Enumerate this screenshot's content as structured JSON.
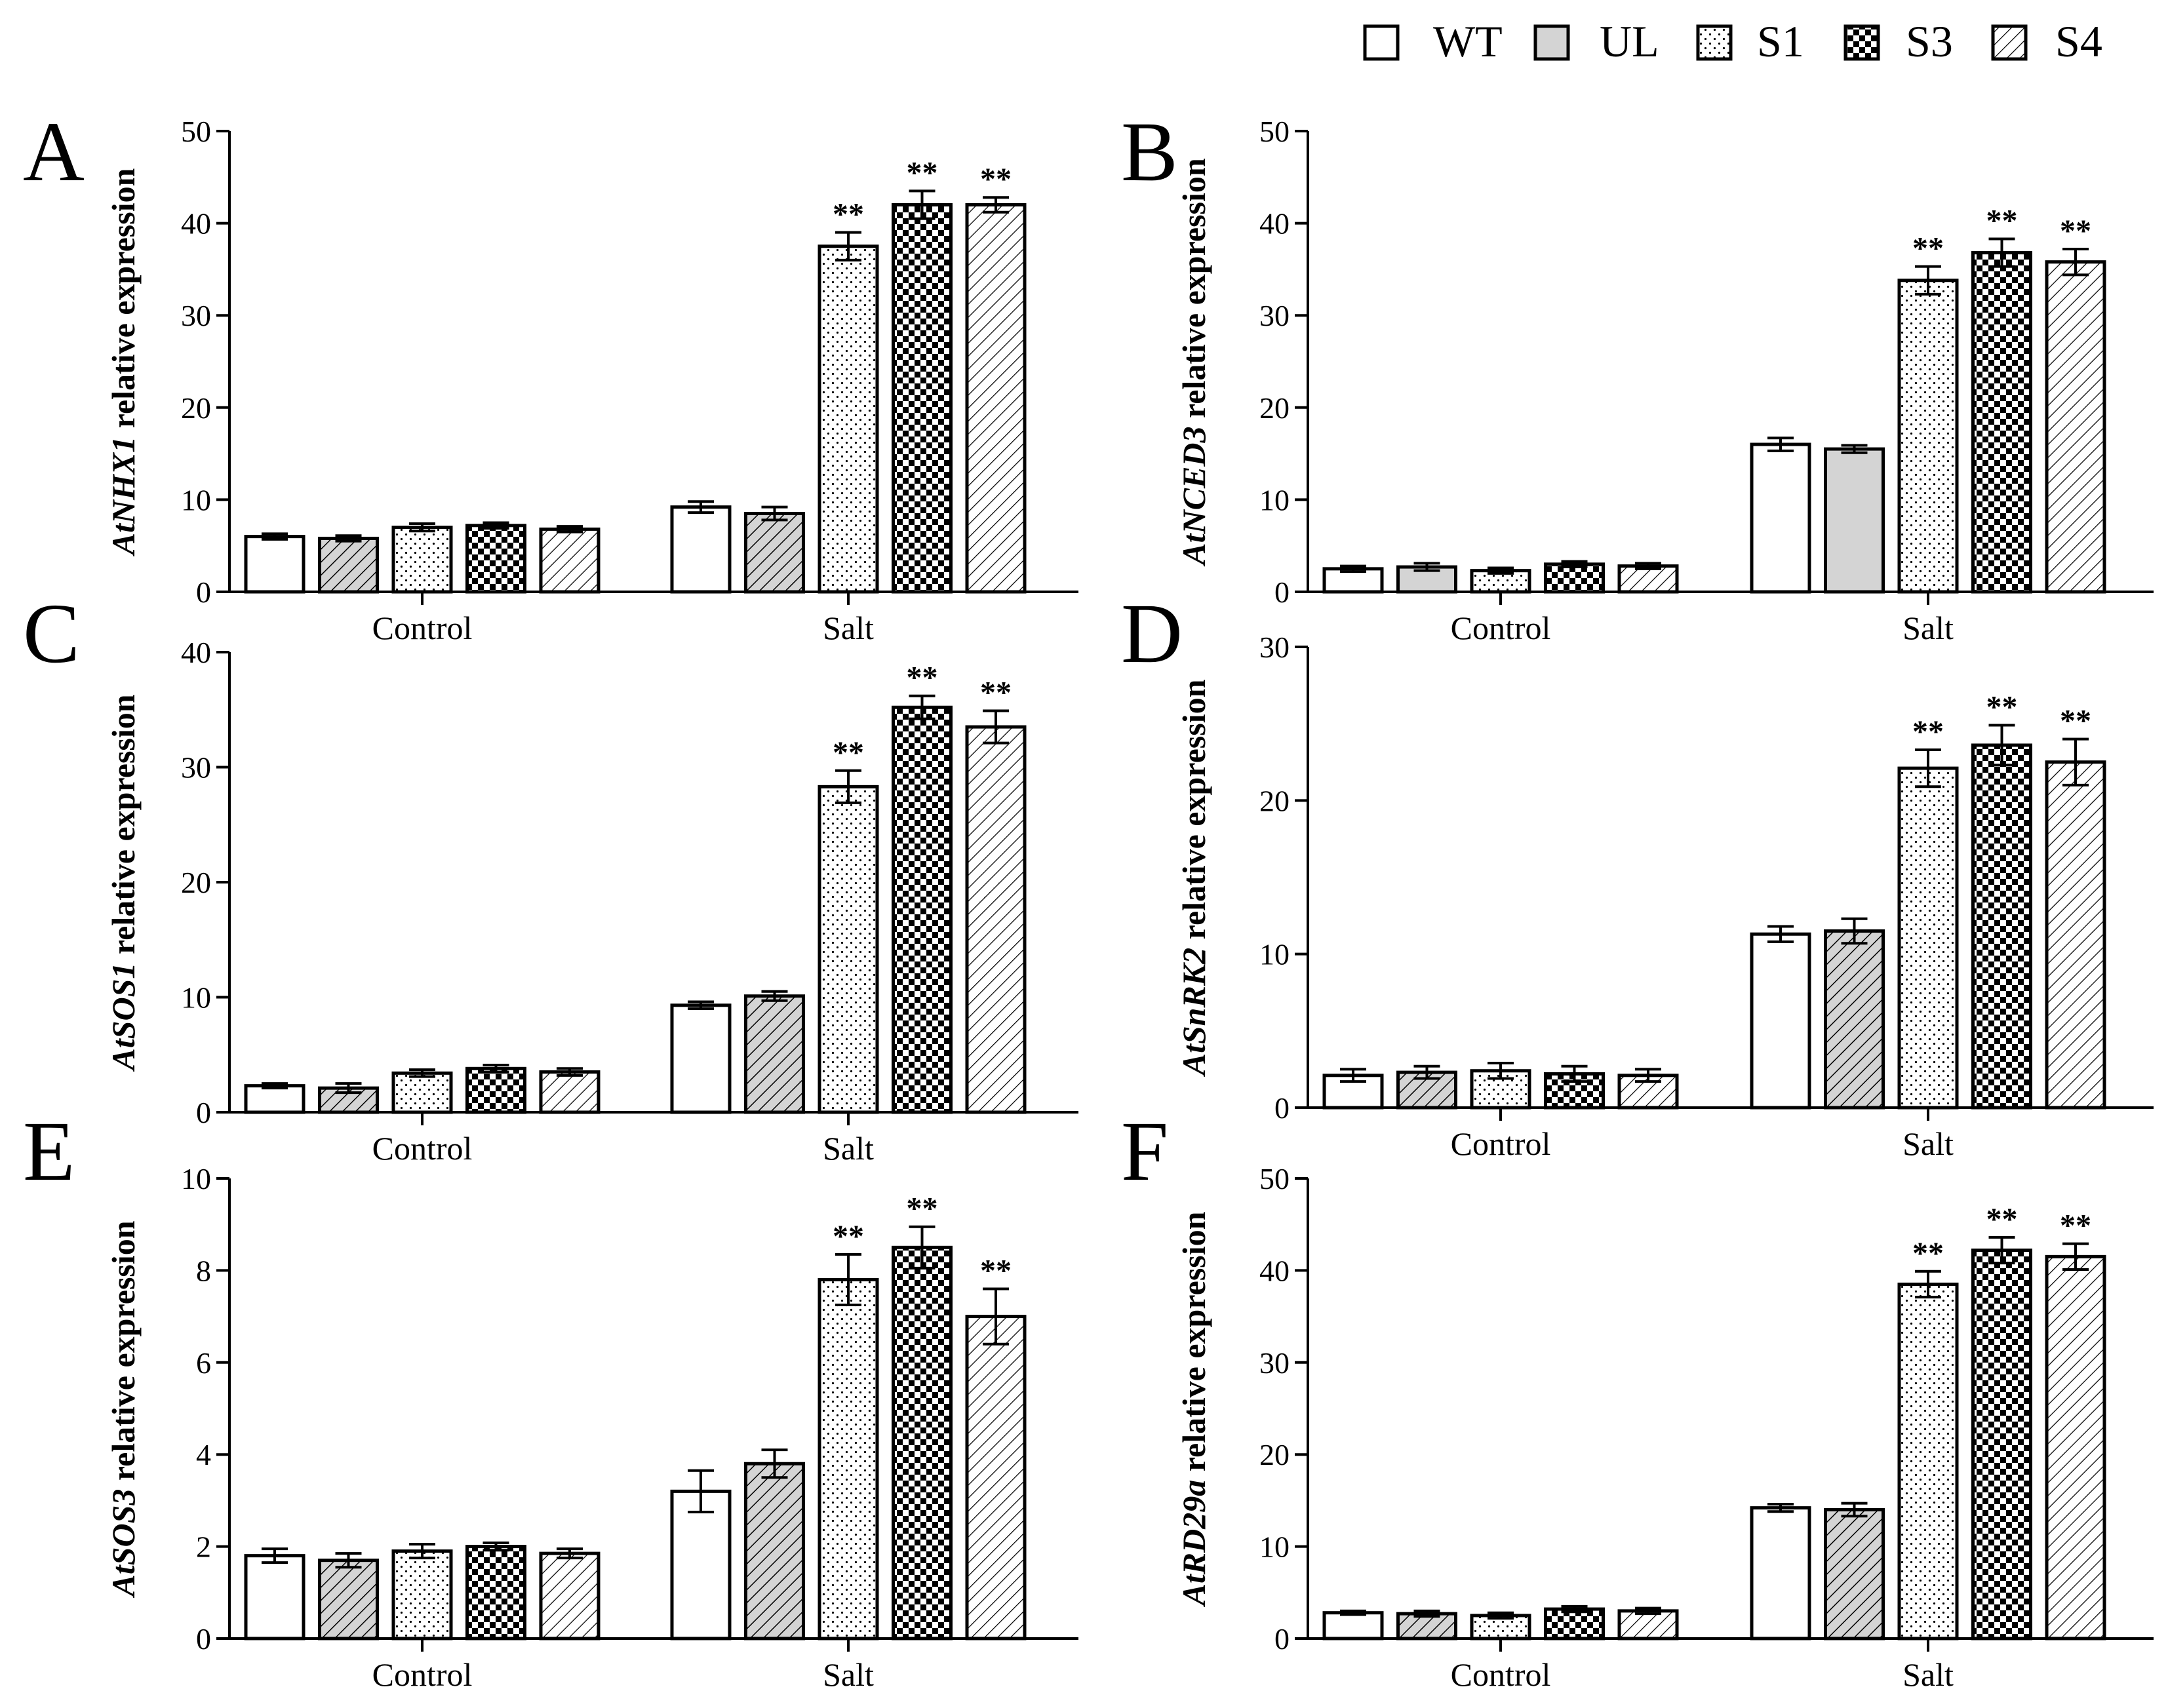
{
  "legend": {
    "items": [
      {
        "name": "WT",
        "pattern": "white"
      },
      {
        "name": "UL",
        "pattern": "gray"
      },
      {
        "name": "S1",
        "pattern": "dots"
      },
      {
        "name": "S3",
        "pattern": "checker"
      },
      {
        "name": "S4",
        "pattern": "hatch"
      }
    ]
  },
  "colors": {
    "gray_fill": "#d4d4d4",
    "ink": "#000000",
    "background": "#ffffff"
  },
  "chart_data": [
    {
      "type": "bar",
      "panel": "A",
      "ylabel_gene": "AtNHX1",
      "ylabel_rest": "relative expression",
      "categories": [
        "Control",
        "Salt"
      ],
      "ylim": [
        0,
        50
      ],
      "ticks": [
        0,
        10,
        20,
        30,
        40,
        50
      ],
      "ul_pattern": "hatch",
      "series": [
        {
          "name": "WT",
          "values": [
            6.0,
            9.2
          ],
          "errors": [
            0.3,
            0.6
          ],
          "sig": [
            "",
            ""
          ]
        },
        {
          "name": "UL",
          "values": [
            5.8,
            8.5
          ],
          "errors": [
            0.3,
            0.7
          ],
          "sig": [
            "",
            ""
          ]
        },
        {
          "name": "S1",
          "values": [
            7.0,
            37.5
          ],
          "errors": [
            0.4,
            1.5
          ],
          "sig": [
            "",
            "**"
          ]
        },
        {
          "name": "S3",
          "values": [
            7.2,
            42.0
          ],
          "errors": [
            0.3,
            1.5
          ],
          "sig": [
            "",
            "**"
          ]
        },
        {
          "name": "S4",
          "values": [
            6.8,
            42.0
          ],
          "errors": [
            0.3,
            0.8
          ],
          "sig": [
            "",
            "**"
          ]
        }
      ]
    },
    {
      "type": "bar",
      "panel": "B",
      "ylabel_gene": "AtNCED3",
      "ylabel_rest": "relative expression",
      "categories": [
        "Control",
        "Salt"
      ],
      "ylim": [
        0,
        50
      ],
      "ticks": [
        0,
        10,
        20,
        30,
        40,
        50
      ],
      "ul_pattern": "gray",
      "series": [
        {
          "name": "WT",
          "values": [
            2.5,
            16.0
          ],
          "errors": [
            0.3,
            0.7
          ],
          "sig": [
            "",
            ""
          ]
        },
        {
          "name": "UL",
          "values": [
            2.7,
            15.5
          ],
          "errors": [
            0.4,
            0.4
          ],
          "sig": [
            "",
            ""
          ]
        },
        {
          "name": "S1",
          "values": [
            2.3,
            33.8
          ],
          "errors": [
            0.3,
            1.5
          ],
          "sig": [
            "",
            "**"
          ]
        },
        {
          "name": "S3",
          "values": [
            3.0,
            36.8
          ],
          "errors": [
            0.3,
            1.5
          ],
          "sig": [
            "",
            "**"
          ]
        },
        {
          "name": "S4",
          "values": [
            2.8,
            35.8
          ],
          "errors": [
            0.3,
            1.4
          ],
          "sig": [
            "",
            "**"
          ]
        }
      ]
    },
    {
      "type": "bar",
      "panel": "C",
      "ylabel_gene": "AtSOS1",
      "ylabel_rest": "relative expression",
      "categories": [
        "Control",
        "Salt"
      ],
      "ylim": [
        0,
        40
      ],
      "ticks": [
        0,
        10,
        20,
        30,
        40
      ],
      "ul_pattern": "hatch",
      "series": [
        {
          "name": "WT",
          "values": [
            2.3,
            9.3
          ],
          "errors": [
            0.2,
            0.3
          ],
          "sig": [
            "",
            ""
          ]
        },
        {
          "name": "UL",
          "values": [
            2.1,
            10.1
          ],
          "errors": [
            0.4,
            0.4
          ],
          "sig": [
            "",
            ""
          ]
        },
        {
          "name": "S1",
          "values": [
            3.4,
            28.3
          ],
          "errors": [
            0.3,
            1.4
          ],
          "sig": [
            "",
            "**"
          ]
        },
        {
          "name": "S3",
          "values": [
            3.8,
            35.2
          ],
          "errors": [
            0.3,
            1.0
          ],
          "sig": [
            "",
            "**"
          ]
        },
        {
          "name": "S4",
          "values": [
            3.5,
            33.5
          ],
          "errors": [
            0.3,
            1.4
          ],
          "sig": [
            "",
            "**"
          ]
        }
      ]
    },
    {
      "type": "bar",
      "panel": "D",
      "ylabel_gene": "AtSnRK2",
      "ylabel_rest": "relative expression",
      "categories": [
        "Control",
        "Salt"
      ],
      "ylim": [
        0,
        30
      ],
      "ticks": [
        0,
        10,
        20,
        30
      ],
      "ul_pattern": "hatch",
      "series": [
        {
          "name": "WT",
          "values": [
            2.1,
            11.3
          ],
          "errors": [
            0.4,
            0.5
          ],
          "sig": [
            "",
            ""
          ]
        },
        {
          "name": "UL",
          "values": [
            2.3,
            11.5
          ],
          "errors": [
            0.4,
            0.8
          ],
          "sig": [
            "",
            ""
          ]
        },
        {
          "name": "S1",
          "values": [
            2.4,
            22.1
          ],
          "errors": [
            0.5,
            1.2
          ],
          "sig": [
            "",
            "**"
          ]
        },
        {
          "name": "S3",
          "values": [
            2.2,
            23.6
          ],
          "errors": [
            0.5,
            1.3
          ],
          "sig": [
            "",
            "**"
          ]
        },
        {
          "name": "S4",
          "values": [
            2.1,
            22.5
          ],
          "errors": [
            0.4,
            1.5
          ],
          "sig": [
            "",
            "**"
          ]
        }
      ]
    },
    {
      "type": "bar",
      "panel": "E",
      "ylabel_gene": "AtSOS3",
      "ylabel_rest": "relative expression",
      "categories": [
        "Control",
        "Salt"
      ],
      "ylim": [
        0,
        10
      ],
      "ticks": [
        0,
        2,
        4,
        6,
        8,
        10
      ],
      "ul_pattern": "hatch",
      "series": [
        {
          "name": "WT",
          "values": [
            1.8,
            3.2
          ],
          "errors": [
            0.15,
            0.45
          ],
          "sig": [
            "",
            ""
          ]
        },
        {
          "name": "UL",
          "values": [
            1.7,
            3.8
          ],
          "errors": [
            0.15,
            0.3
          ],
          "sig": [
            "",
            ""
          ]
        },
        {
          "name": "S1",
          "values": [
            1.9,
            7.8
          ],
          "errors": [
            0.15,
            0.55
          ],
          "sig": [
            "",
            "**"
          ]
        },
        {
          "name": "S3",
          "values": [
            2.0,
            8.5
          ],
          "errors": [
            0.08,
            0.45
          ],
          "sig": [
            "",
            "**"
          ]
        },
        {
          "name": "S4",
          "values": [
            1.85,
            7.0
          ],
          "errors": [
            0.1,
            0.6
          ],
          "sig": [
            "",
            "**"
          ]
        }
      ]
    },
    {
      "type": "bar",
      "panel": "F",
      "ylabel_gene": "AtRD29a",
      "ylabel_rest": "relative expression",
      "categories": [
        "Control",
        "Salt"
      ],
      "ylim": [
        0,
        50
      ],
      "ticks": [
        0,
        10,
        20,
        30,
        40,
        50
      ],
      "ul_pattern": "hatch",
      "series": [
        {
          "name": "WT",
          "values": [
            2.8,
            14.2
          ],
          "errors": [
            0.2,
            0.4
          ],
          "sig": [
            "",
            ""
          ]
        },
        {
          "name": "UL",
          "values": [
            2.7,
            14.0
          ],
          "errors": [
            0.3,
            0.7
          ],
          "sig": [
            "",
            ""
          ]
        },
        {
          "name": "S1",
          "values": [
            2.5,
            38.5
          ],
          "errors": [
            0.3,
            1.4
          ],
          "sig": [
            "",
            "**"
          ]
        },
        {
          "name": "S3",
          "values": [
            3.2,
            42.2
          ],
          "errors": [
            0.3,
            1.4
          ],
          "sig": [
            "",
            "**"
          ]
        },
        {
          "name": "S4",
          "values": [
            3.0,
            41.5
          ],
          "errors": [
            0.3,
            1.4
          ],
          "sig": [
            "",
            "**"
          ]
        }
      ]
    }
  ]
}
